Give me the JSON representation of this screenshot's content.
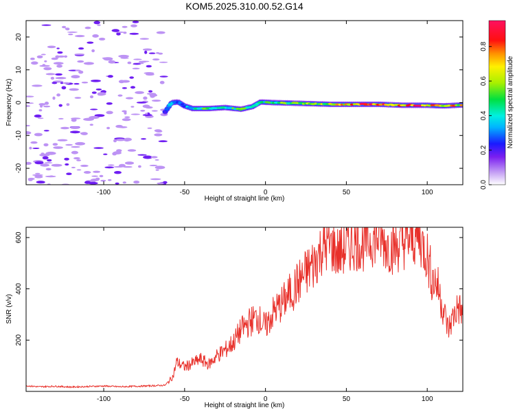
{
  "title": "KOM5.2025.310.00.52.G14",
  "chart_data": [
    {
      "type": "heatmap",
      "name": "spectrogram",
      "xlabel": "Height of straight line (km)",
      "ylabel": "Frequency (Hz)",
      "xlim": [
        -148,
        122
      ],
      "ylim": [
        -25,
        25
      ],
      "xticks": [
        -100,
        -50,
        0,
        50,
        100
      ],
      "yticks": [
        -20,
        -10,
        0,
        10,
        20
      ],
      "colorbar": {
        "label": "Normalized spectral amplitude",
        "range": [
          0,
          0.95
        ],
        "ticks": [
          0.0,
          0.2,
          0.4,
          0.6,
          0.8
        ],
        "colormap": "rainbow (violet-blue-cyan-green-yellow-red-magenta)"
      },
      "signal_track": [
        {
          "x": -62,
          "f": -2.8,
          "amp": 0.25
        },
        {
          "x": -58,
          "f": 0.0,
          "amp": 0.35
        },
        {
          "x": -54,
          "f": 0.2,
          "amp": 0.3
        },
        {
          "x": -50,
          "f": -1.0,
          "amp": 0.3
        },
        {
          "x": -45,
          "f": -1.8,
          "amp": 0.45
        },
        {
          "x": -35,
          "f": -1.8,
          "amp": 0.55
        },
        {
          "x": -25,
          "f": -1.5,
          "amp": 0.45
        },
        {
          "x": -15,
          "f": -2.0,
          "amp": 0.55
        },
        {
          "x": -8,
          "f": -1.2,
          "amp": 0.4
        },
        {
          "x": -3,
          "f": 0.2,
          "amp": 0.45
        },
        {
          "x": 5,
          "f": 0.0,
          "amp": 0.55
        },
        {
          "x": 20,
          "f": -0.2,
          "amp": 0.6
        },
        {
          "x": 40,
          "f": -0.5,
          "amp": 0.65
        },
        {
          "x": 55,
          "f": -0.5,
          "amp": 0.8
        },
        {
          "x": 70,
          "f": -0.5,
          "amp": 0.85
        },
        {
          "x": 85,
          "f": -0.8,
          "amp": 0.85
        },
        {
          "x": 100,
          "f": -0.8,
          "amp": 0.85
        },
        {
          "x": 110,
          "f": -1.0,
          "amp": 0.75
        },
        {
          "x": 122,
          "f": -0.7,
          "amp": 0.7
        }
      ],
      "noise_region_x": [
        -148,
        -62
      ]
    },
    {
      "type": "line",
      "name": "snr",
      "xlabel": "Height of straight line (km)",
      "ylabel": "SNR (v/v)",
      "xlim": [
        -148,
        122
      ],
      "ylim": [
        0,
        640
      ],
      "xticks": [
        -100,
        -50,
        0,
        50,
        100
      ],
      "yticks": [
        200,
        400,
        600
      ],
      "color": "#e8302a",
      "series": [
        {
          "name": "SNR",
          "x": [
            -148,
            -140,
            -130,
            -120,
            -110,
            -100,
            -90,
            -80,
            -70,
            -62,
            -57,
            -55,
            -50,
            -45,
            -40,
            -35,
            -30,
            -25,
            -20,
            -15,
            -10,
            -5,
            0,
            5,
            10,
            15,
            20,
            25,
            30,
            35,
            40,
            45,
            50,
            55,
            60,
            65,
            70,
            75,
            80,
            85,
            90,
            95,
            100,
            103,
            106,
            110,
            113,
            116,
            119,
            122
          ],
          "values": [
            22,
            18,
            20,
            17,
            19,
            21,
            18,
            20,
            22,
            24,
            60,
            115,
            95,
            110,
            125,
            105,
            140,
            160,
            190,
            240,
            270,
            290,
            250,
            310,
            340,
            380,
            420,
            460,
            500,
            560,
            570,
            540,
            560,
            580,
            570,
            590,
            600,
            570,
            560,
            580,
            590,
            600,
            530,
            440,
            420,
            320,
            240,
            290,
            330,
            300
          ]
        }
      ]
    }
  ]
}
